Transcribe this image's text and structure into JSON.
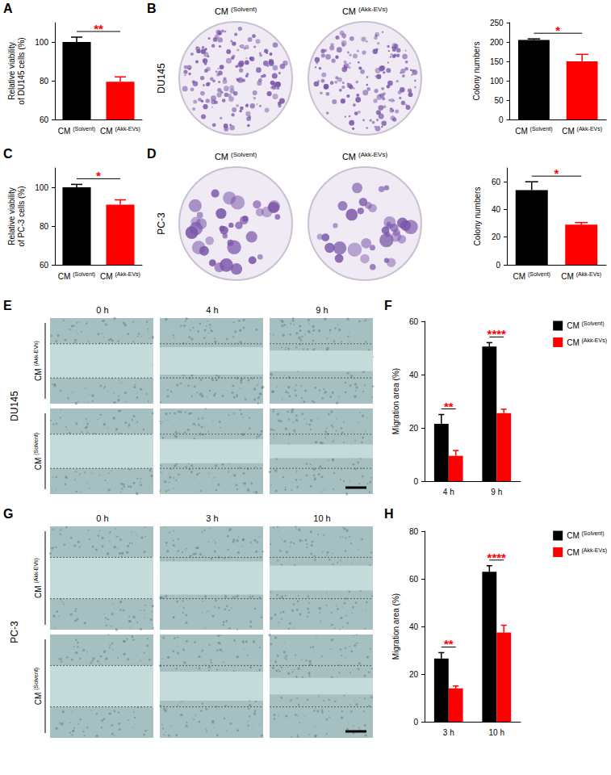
{
  "chart_data": [
    {
      "panel": "A",
      "type": "bar",
      "ylabel": "Relative viability\nof DU145 cells (%)",
      "categories": [
        "CM (Solvent)",
        "CM (Akk-EVs)"
      ],
      "values": [
        100,
        79.5
      ],
      "errors": [
        2.5,
        2.5
      ],
      "colors": [
        "#000000",
        "#ff0000"
      ],
      "ylim": [
        60,
        110
      ],
      "yticks": [
        60,
        80,
        100
      ],
      "annotations": [
        {
          "text": "**",
          "color": "#ff0000"
        }
      ]
    },
    {
      "type": "bar",
      "ylabel": "Colony numbers",
      "categories": [
        "CM (Solvent)",
        "CM (Akk-EVs)"
      ],
      "values": [
        205,
        150
      ],
      "errors": [
        3,
        18
      ],
      "colors": [
        "#000000",
        "#ff0000"
      ],
      "ylim": [
        0,
        250
      ],
      "yticks": [
        0,
        50,
        100,
        150,
        200,
        250
      ],
      "annotations": [
        {
          "text": "*",
          "color": "#ff0000"
        }
      ]
    },
    {
      "panel": "C",
      "type": "bar",
      "ylabel": "Relative viability\nof PC-3 cells (%)",
      "categories": [
        "CM (Solvent)",
        "CM (Akk-EVs)"
      ],
      "values": [
        100,
        91
      ],
      "errors": [
        1.5,
        2.5
      ],
      "colors": [
        "#000000",
        "#ff0000"
      ],
      "ylim": [
        60,
        110
      ],
      "yticks": [
        60,
        80,
        100
      ],
      "annotations": [
        {
          "text": "*",
          "color": "#ff0000"
        }
      ]
    },
    {
      "type": "bar",
      "ylabel": "Colony numbers",
      "categories": [
        "CM (Solvent)",
        "CM (Akk-EVs)"
      ],
      "values": [
        54,
        29
      ],
      "errors": [
        6,
        1.5
      ],
      "colors": [
        "#000000",
        "#ff0000"
      ],
      "ylim": [
        0,
        70
      ],
      "yticks": [
        0,
        20,
        40,
        60
      ],
      "annotations": [
        {
          "text": "*",
          "color": "#ff0000"
        }
      ]
    },
    {
      "panel": "F",
      "type": "bar",
      "ylabel": "Migration area (%)",
      "categories": [
        "4 h",
        "9 h"
      ],
      "series": [
        {
          "name": "CM (Solvent)",
          "color": "#000000",
          "values": [
            21.5,
            50.5
          ],
          "errors": [
            3.5,
            1.5
          ]
        },
        {
          "name": "CM (Akk-EVs)",
          "color": "#ff0000",
          "values": [
            9.5,
            25.5
          ],
          "errors": [
            2,
            1.5
          ]
        }
      ],
      "ylim": [
        0,
        60
      ],
      "yticks": [
        0,
        20,
        40,
        60
      ],
      "legend": "top-right",
      "annotations": [
        {
          "category": "4 h",
          "text": "**",
          "color": "#ff0000"
        },
        {
          "category": "9 h",
          "text": "****",
          "color": "#ff0000"
        }
      ]
    },
    {
      "panel": "H",
      "type": "bar",
      "ylabel": "Migration area (%)",
      "categories": [
        "3 h",
        "10 h"
      ],
      "series": [
        {
          "name": "CM (Solvent)",
          "color": "#000000",
          "values": [
            26.5,
            63
          ],
          "errors": [
            2.5,
            2.5
          ]
        },
        {
          "name": "CM (Akk-EVs)",
          "color": "#ff0000",
          "values": [
            14,
            37.5
          ],
          "errors": [
            1,
            3
          ]
        }
      ],
      "ylim": [
        0,
        80
      ],
      "yticks": [
        0,
        20,
        40,
        60,
        80
      ],
      "legend": "top-right",
      "annotations": [
        {
          "category": "3 h",
          "text": "**",
          "color": "#ff0000"
        },
        {
          "category": "10 h",
          "text": "****",
          "color": "#ff0000"
        }
      ]
    }
  ],
  "images": [
    {
      "panel": "B",
      "row_label": "DU145",
      "captions": [
        "CM (Solvent)",
        "CM (Akk-EVs)"
      ]
    },
    {
      "panel": "D",
      "row_label": "PC-3",
      "captions": [
        "CM (Solvent)",
        "CM (Akk-EVs)"
      ]
    },
    {
      "panel": "E",
      "row_label": "DU145",
      "times": [
        "0 h",
        "4 h",
        "9 h"
      ],
      "conditions": [
        "CM (Akk-EVs)",
        "CM (Solvent)"
      ]
    },
    {
      "panel": "G",
      "row_label": "PC-3",
      "times": [
        "0 h",
        "3 h",
        "10 h"
      ],
      "conditions": [
        "CM (Akk-EVs)",
        "CM (Solvent)"
      ]
    }
  ]
}
